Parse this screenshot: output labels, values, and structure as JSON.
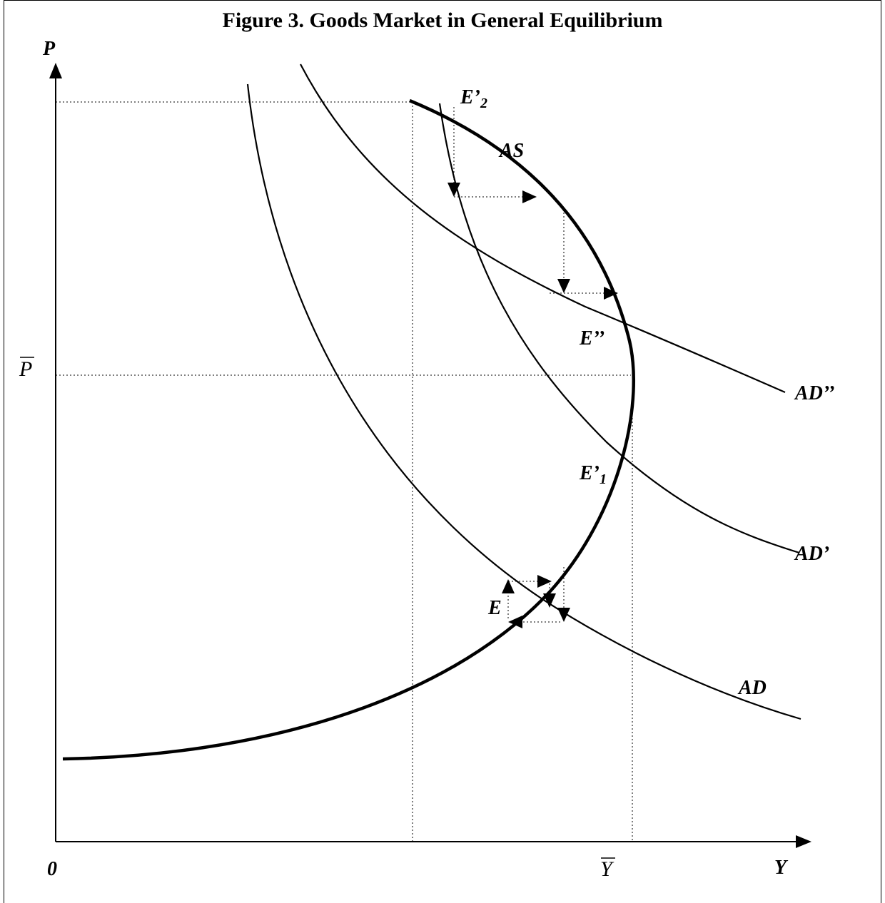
{
  "title": "Figure 3. Goods Market in General Equilibrium",
  "axes": {
    "y_label": "P",
    "x_label": "Y",
    "origin_label": "0",
    "p_bar_label": "P",
    "y_bar_label": "Y"
  },
  "curves": {
    "as_label": "AS",
    "ad_label": "AD",
    "ad_prime_label": "AD’",
    "ad_double_prime_label": "AD’’"
  },
  "points": {
    "e_label": "E",
    "e1_main": "E’",
    "e1_sub": "1",
    "e2_main": "E’",
    "e2_sub": "2",
    "e_double_prime_label": "E’’"
  }
}
